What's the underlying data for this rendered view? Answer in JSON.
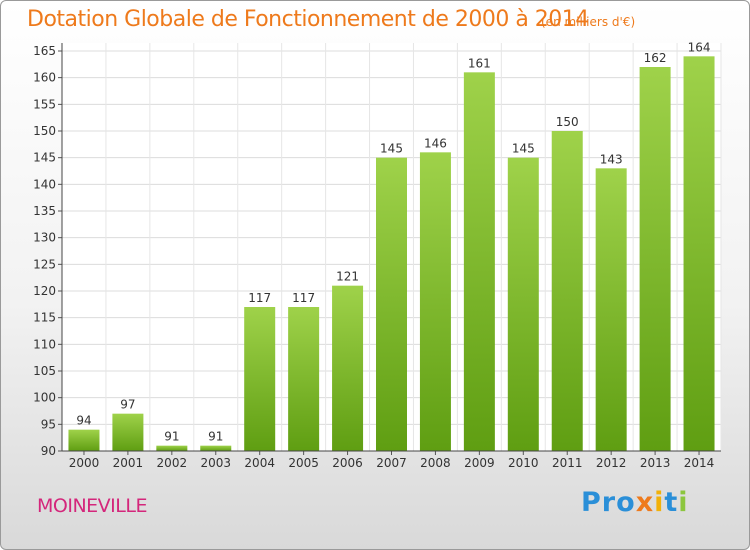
{
  "header": {
    "title": "Dotation Globale de Fonctionnement de 2000 à 2014",
    "unit": "(en milliers d'€)"
  },
  "footer": {
    "commune": "MOINEVILLE",
    "logo_letters": [
      "P",
      "r",
      "o",
      "x",
      "i",
      "t",
      "i"
    ]
  },
  "colors": {
    "title": "#ee7a1c",
    "commune": "#d4267b",
    "bar_light": "#9fd24a",
    "bar_dark": "#5f9e12",
    "logo": [
      "#2a8fd8",
      "#2a8fd8",
      "#2a8fd8",
      "#ee7a1c",
      "#f2b10a",
      "#2a8fd8",
      "#8cc63e"
    ]
  },
  "chart_data": {
    "type": "bar",
    "title": "Dotation Globale de Fonctionnement de 2000 à 2014",
    "subtitle": "(en milliers d'€)",
    "categories": [
      "2000",
      "2001",
      "2002",
      "2003",
      "2004",
      "2005",
      "2006",
      "2007",
      "2008",
      "2009",
      "2010",
      "2011",
      "2012",
      "2013",
      "2014"
    ],
    "values": [
      94,
      97,
      91,
      91,
      117,
      117,
      121,
      145,
      146,
      161,
      145,
      150,
      143,
      162,
      164
    ],
    "ylim": [
      90,
      165
    ],
    "yticks": [
      90,
      95,
      100,
      105,
      110,
      115,
      120,
      125,
      130,
      135,
      140,
      145,
      150,
      155,
      160,
      165
    ],
    "grid": true,
    "legend": "none"
  }
}
